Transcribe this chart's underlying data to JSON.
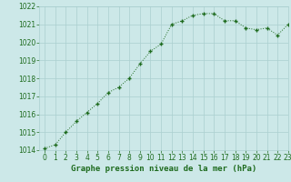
{
  "x": [
    0,
    1,
    2,
    3,
    4,
    5,
    6,
    7,
    8,
    9,
    10,
    11,
    12,
    13,
    14,
    15,
    16,
    17,
    18,
    19,
    20,
    21,
    22,
    23
  ],
  "y": [
    1014.1,
    1014.3,
    1015.0,
    1015.6,
    1016.1,
    1016.6,
    1017.2,
    1017.5,
    1018.0,
    1018.8,
    1019.5,
    1019.9,
    1021.0,
    1021.2,
    1021.5,
    1021.6,
    1021.6,
    1021.2,
    1021.2,
    1020.8,
    1020.7,
    1020.8,
    1020.4,
    1021.0
  ],
  "ylim": [
    1014.0,
    1022.0
  ],
  "xlim": [
    -0.5,
    23
  ],
  "yticks": [
    1014,
    1015,
    1016,
    1017,
    1018,
    1019,
    1020,
    1021,
    1022
  ],
  "xticks": [
    0,
    1,
    2,
    3,
    4,
    5,
    6,
    7,
    8,
    9,
    10,
    11,
    12,
    13,
    14,
    15,
    16,
    17,
    18,
    19,
    20,
    21,
    22,
    23
  ],
  "xlabel": "Graphe pression niveau de la mer (hPa)",
  "line_color": "#1e6b1e",
  "marker": "+",
  "bg_color": "#cce8e8",
  "grid_color": "#aacfcf",
  "xlabel_fontsize": 6.5,
  "tick_fontsize": 5.5,
  "tick_color": "#1e6b1e",
  "label_color": "#1e6b1e"
}
